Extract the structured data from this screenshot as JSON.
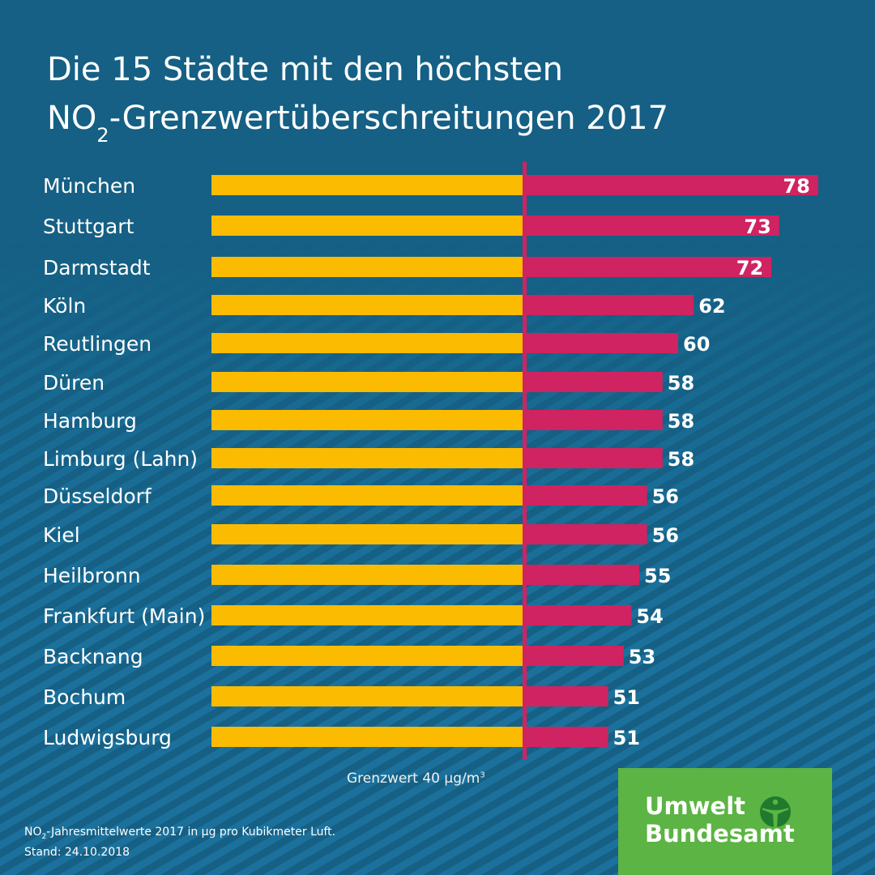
{
  "title": {
    "line1": "Die 15 Städte mit den höchsten",
    "line2_prefix": "NO",
    "line2_sub": "2",
    "line2_suffix": "-Grenzwertüberschreitungen 2017"
  },
  "colors": {
    "background": "#156084",
    "below_limit": "#fbbb00",
    "above_limit": "#d02361",
    "limit_line": "#d02361",
    "logo_bg": "#5bb443",
    "logo_icon": "#1f7a2e"
  },
  "chart_data": {
    "type": "bar",
    "orientation": "horizontal",
    "title": "Die 15 Städte mit den höchsten NO2-Grenzwertüberschreitungen 2017",
    "xlabel": "",
    "ylabel": "",
    "unit": "µg/m³",
    "xlim": [
      0,
      80
    ],
    "threshold": 40,
    "threshold_label": "Grenzwert 40 µg/m³",
    "categories": [
      "München",
      "Stuttgart",
      "Darmstadt",
      "Köln",
      "Reutlingen",
      "Düren",
      "Hamburg",
      "Limburg (Lahn)",
      "Düsseldorf",
      "Kiel",
      "Heilbronn",
      "Frankfurt (Main)",
      "Backnang",
      "Bochum",
      "Ludwigsburg"
    ],
    "values": [
      78,
      73,
      72,
      62,
      60,
      58,
      58,
      58,
      56,
      56,
      55,
      54,
      53,
      51,
      51
    ],
    "grid": false,
    "legend": "none"
  },
  "limit_label": {
    "text": "Grenzwert 40 µg/m",
    "sup": "3"
  },
  "footnote": {
    "line1_prefix": "NO",
    "line1_sub": "2",
    "line1_suffix": "-Jahresmittelwerte 2017 in µg pro Kubikmeter Luft.",
    "line2": "Stand: 24.10.2018"
  },
  "logo": {
    "line1": "Umwelt",
    "line2": "Bundesamt",
    "icon": "umweltbundesamt-figure-icon"
  }
}
